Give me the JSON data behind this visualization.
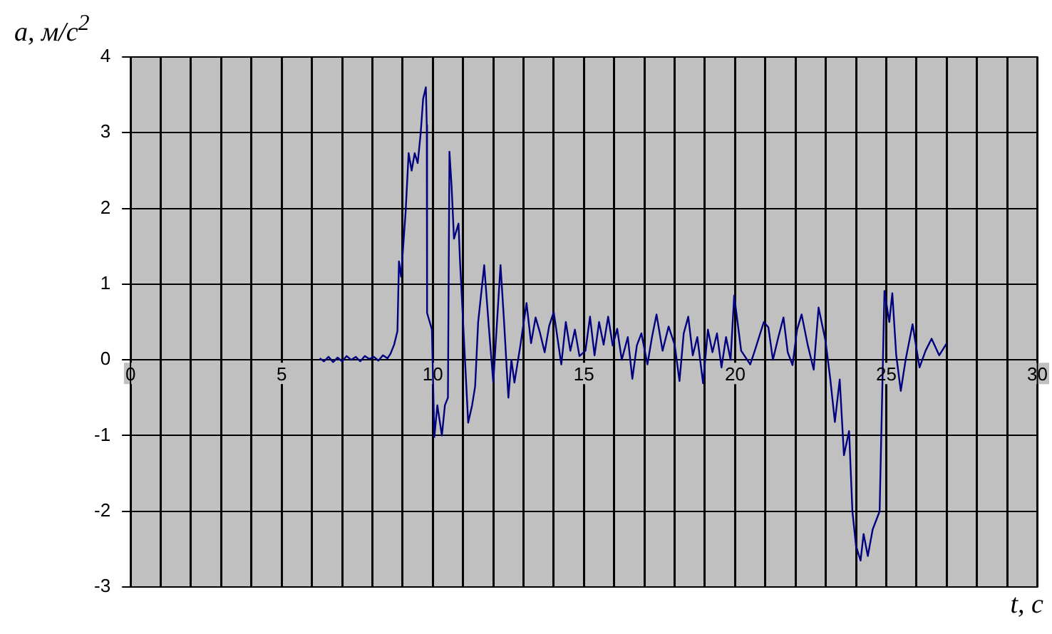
{
  "chart_data": {
    "type": "line",
    "xlabel": "t, c",
    "ylabel": "a, м/с$^{2}$",
    "x": [
      6.26,
      6.4,
      6.55,
      6.7,
      6.85,
      7.0,
      7.15,
      7.3,
      7.45,
      7.6,
      7.75,
      7.9,
      8.05,
      8.2,
      8.35,
      8.5,
      8.6,
      8.72,
      8.83,
      8.88,
      8.95,
      9.1,
      9.2,
      9.3,
      9.4,
      9.5,
      9.6,
      9.68,
      9.77,
      9.8,
      9.81,
      9.97,
      10.05,
      10.15,
      10.3,
      10.4,
      10.5,
      10.55,
      10.62,
      10.7,
      10.85,
      10.9,
      11.17,
      11.3,
      11.4,
      11.5,
      11.7,
      11.85,
      12.0,
      12.24,
      12.35,
      12.5,
      12.6,
      12.7,
      12.9,
      13.1,
      13.25,
      13.4,
      13.55,
      13.7,
      13.85,
      14.0,
      14.25,
      14.4,
      14.55,
      14.7,
      14.85,
      15.05,
      15.2,
      15.35,
      15.5,
      15.65,
      15.8,
      15.95,
      16.1,
      16.25,
      16.45,
      16.6,
      16.75,
      16.9,
      17.1,
      17.25,
      17.4,
      17.6,
      17.8,
      18.0,
      18.16,
      18.3,
      18.45,
      18.6,
      18.75,
      18.94,
      19.1,
      19.25,
      19.4,
      19.55,
      19.7,
      19.85,
      19.97,
      20.2,
      20.5,
      20.65,
      20.8,
      20.95,
      21.1,
      21.25,
      21.43,
      21.6,
      21.74,
      21.9,
      22.05,
      22.2,
      22.4,
      22.6,
      22.76,
      22.99,
      23.15,
      23.3,
      23.46,
      23.6,
      23.77,
      23.88,
      24.0,
      24.15,
      24.25,
      24.39,
      24.55,
      24.78,
      24.94,
      25.1,
      25.2,
      25.33,
      25.48,
      25.64,
      25.87,
      26.1,
      26.3,
      26.5,
      26.75,
      27.0
    ],
    "values": [
      0.02,
      -0.02,
      0.04,
      -0.03,
      0.03,
      -0.02,
      0.05,
      0.0,
      0.04,
      -0.02,
      0.05,
      0.01,
      0.04,
      -0.01,
      0.06,
      0.02,
      0.08,
      0.2,
      0.38,
      1.3,
      1.1,
      1.95,
      2.73,
      2.5,
      2.73,
      2.6,
      3.0,
      3.45,
      3.6,
      3.1,
      0.62,
      0.4,
      -1.02,
      -0.6,
      -1.0,
      -0.6,
      -0.5,
      2.75,
      2.3,
      1.6,
      1.8,
      1.3,
      -0.83,
      -0.6,
      -0.35,
      0.5,
      1.25,
      0.45,
      -0.3,
      1.25,
      0.55,
      -0.5,
      0.0,
      -0.3,
      0.2,
      0.75,
      0.22,
      0.56,
      0.35,
      0.1,
      0.45,
      0.63,
      -0.06,
      0.5,
      0.12,
      0.4,
      0.05,
      0.12,
      0.57,
      0.06,
      0.5,
      0.2,
      0.57,
      0.19,
      0.41,
      0.0,
      0.3,
      -0.25,
      0.19,
      0.35,
      -0.06,
      0.3,
      0.6,
      0.12,
      0.44,
      0.2,
      -0.28,
      0.35,
      0.57,
      0.06,
      0.3,
      -0.31,
      0.4,
      0.1,
      0.35,
      -0.1,
      0.3,
      0.0,
      0.85,
      0.12,
      -0.06,
      0.12,
      0.31,
      0.5,
      0.43,
      0.0,
      0.3,
      0.56,
      0.1,
      -0.07,
      0.4,
      0.6,
      0.2,
      -0.13,
      0.69,
      0.25,
      -0.26,
      -0.82,
      -0.26,
      -1.26,
      -0.94,
      -2.0,
      -2.46,
      -2.65,
      -2.3,
      -2.59,
      -2.24,
      -2.0,
      0.91,
      0.5,
      0.88,
      0.06,
      -0.41,
      0.0,
      0.47,
      -0.1,
      0.12,
      0.28,
      0.06,
      0.22
    ],
    "color": "#000080",
    "xlim": [
      0,
      30
    ],
    "xticks": [
      0,
      {
        "value": 1,
        "label": null
      },
      {
        "value": 2,
        "label": null
      },
      {
        "value": 3,
        "label": null
      },
      {
        "value": 4,
        "label": null
      },
      5,
      {
        "value": 6,
        "label": null
      },
      {
        "value": 7,
        "label": null
      },
      {
        "value": 8,
        "label": null
      },
      {
        "value": 9,
        "label": null
      },
      10,
      {
        "value": 11,
        "label": null
      },
      {
        "value": 12,
        "label": null
      },
      {
        "value": 13,
        "label": null
      },
      {
        "value": 14,
        "label": null
      },
      15,
      {
        "value": 16,
        "label": null
      },
      {
        "value": 17,
        "label": null
      },
      {
        "value": 18,
        "label": null
      },
      {
        "value": 19,
        "label": null
      },
      20,
      {
        "value": 21,
        "label": null
      },
      {
        "value": 22,
        "label": null
      },
      {
        "value": 23,
        "label": null
      },
      {
        "value": 24,
        "label": null
      },
      25,
      {
        "value": 26,
        "label": null
      },
      {
        "value": 27,
        "label": null
      },
      {
        "value": 28,
        "label": null
      },
      {
        "value": 29,
        "label": null
      },
      30
    ],
    "ylim": [
      -3,
      4
    ],
    "yticks": [
      -3,
      -2,
      -1,
      0,
      1,
      2,
      3,
      4
    ],
    "grid": true,
    "legend": false,
    "marker": "none",
    "line_style": "solid"
  }
}
